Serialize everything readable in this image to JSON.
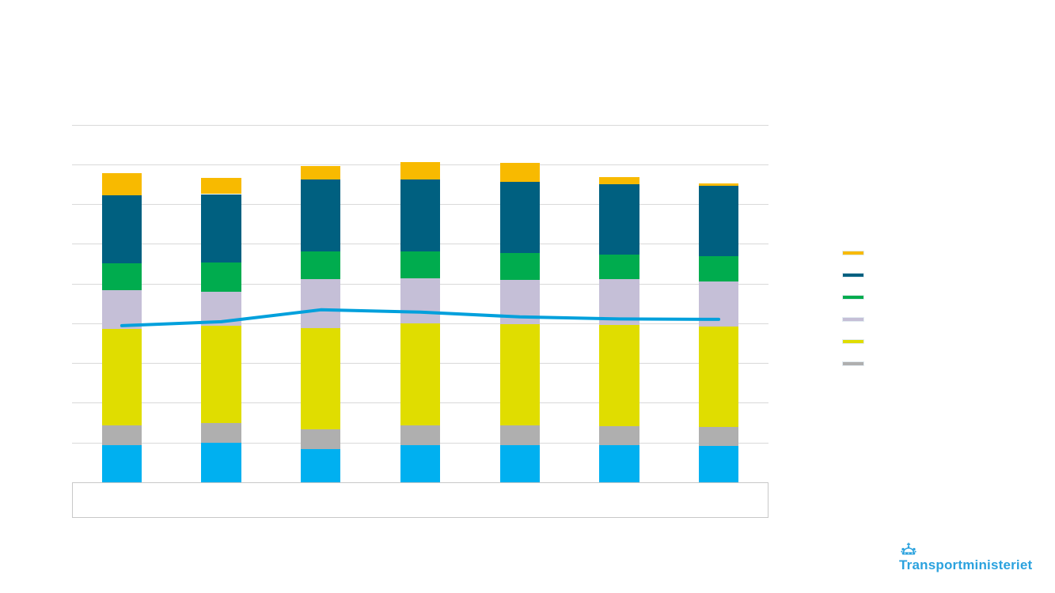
{
  "slide": {
    "background": "#FFFFFF"
  },
  "chart_data": {
    "type": "bar",
    "subtype": "stacked-bar-with-line-overlay",
    "title": "",
    "xlabel": "",
    "ylabel": "",
    "categories": [
      "",
      "",
      "",
      "",
      "",
      "",
      ""
    ],
    "axis_note": "no tick labels, axis titles or data labels are visible; values estimated in gridline units",
    "y_axis": {
      "min": 0,
      "max": 9,
      "gridline_step": 1,
      "tick_labels_visible": false
    },
    "x_axis": {
      "labels_visible": false
    },
    "grid": true,
    "bar_series": [
      {
        "name": "series-cyan",
        "color": "#00B0F0",
        "values": [
          0.94,
          0.99,
          0.83,
          0.94,
          0.94,
          0.93,
          0.91
        ]
      },
      {
        "name": "series-gray",
        "color": "#AFAFAF",
        "values": [
          0.49,
          0.5,
          0.5,
          0.5,
          0.5,
          0.48,
          0.48
        ]
      },
      {
        "name": "series-yellow",
        "color": "#E0DD00",
        "values": [
          2.42,
          2.45,
          2.54,
          2.55,
          2.54,
          2.55,
          2.53
        ]
      },
      {
        "name": "series-lavender",
        "color": "#C5BFD7",
        "values": [
          0.98,
          0.86,
          1.25,
          1.15,
          1.11,
          1.15,
          1.13
        ]
      },
      {
        "name": "series-green",
        "color": "#00AC4E",
        "values": [
          0.69,
          0.73,
          0.68,
          0.66,
          0.68,
          0.61,
          0.64
        ]
      },
      {
        "name": "series-darkblue",
        "color": "#006080",
        "values": [
          1.7,
          1.72,
          1.81,
          1.81,
          1.79,
          1.77,
          1.76
        ]
      },
      {
        "name": "series-orange",
        "color": "#F8BA00",
        "values": [
          0.56,
          0.41,
          0.34,
          0.44,
          0.48,
          0.19,
          0.07
        ]
      }
    ],
    "line_series": {
      "name": "series-trend-line",
      "color": "#00A0DC",
      "values": [
        3.94,
        4.04,
        4.34,
        4.28,
        4.16,
        4.11,
        4.1
      ]
    },
    "legend": {
      "position": "right",
      "labels_visible": false,
      "entries": [
        {
          "name": "series-orange",
          "label": "",
          "color": "#F8BA00"
        },
        {
          "name": "series-darkblue",
          "label": "",
          "color": "#006080"
        },
        {
          "name": "series-green",
          "label": "",
          "color": "#00AC4E"
        },
        {
          "name": "series-lavender",
          "label": "",
          "color": "#C5BFD7"
        },
        {
          "name": "series-yellow",
          "label": "",
          "color": "#E0DD00"
        },
        {
          "name": "series-gray",
          "label": "",
          "color": "#AFAFAF"
        }
      ]
    }
  },
  "logo": {
    "text": "Transportministeriet",
    "color": "#2BA2DE"
  }
}
